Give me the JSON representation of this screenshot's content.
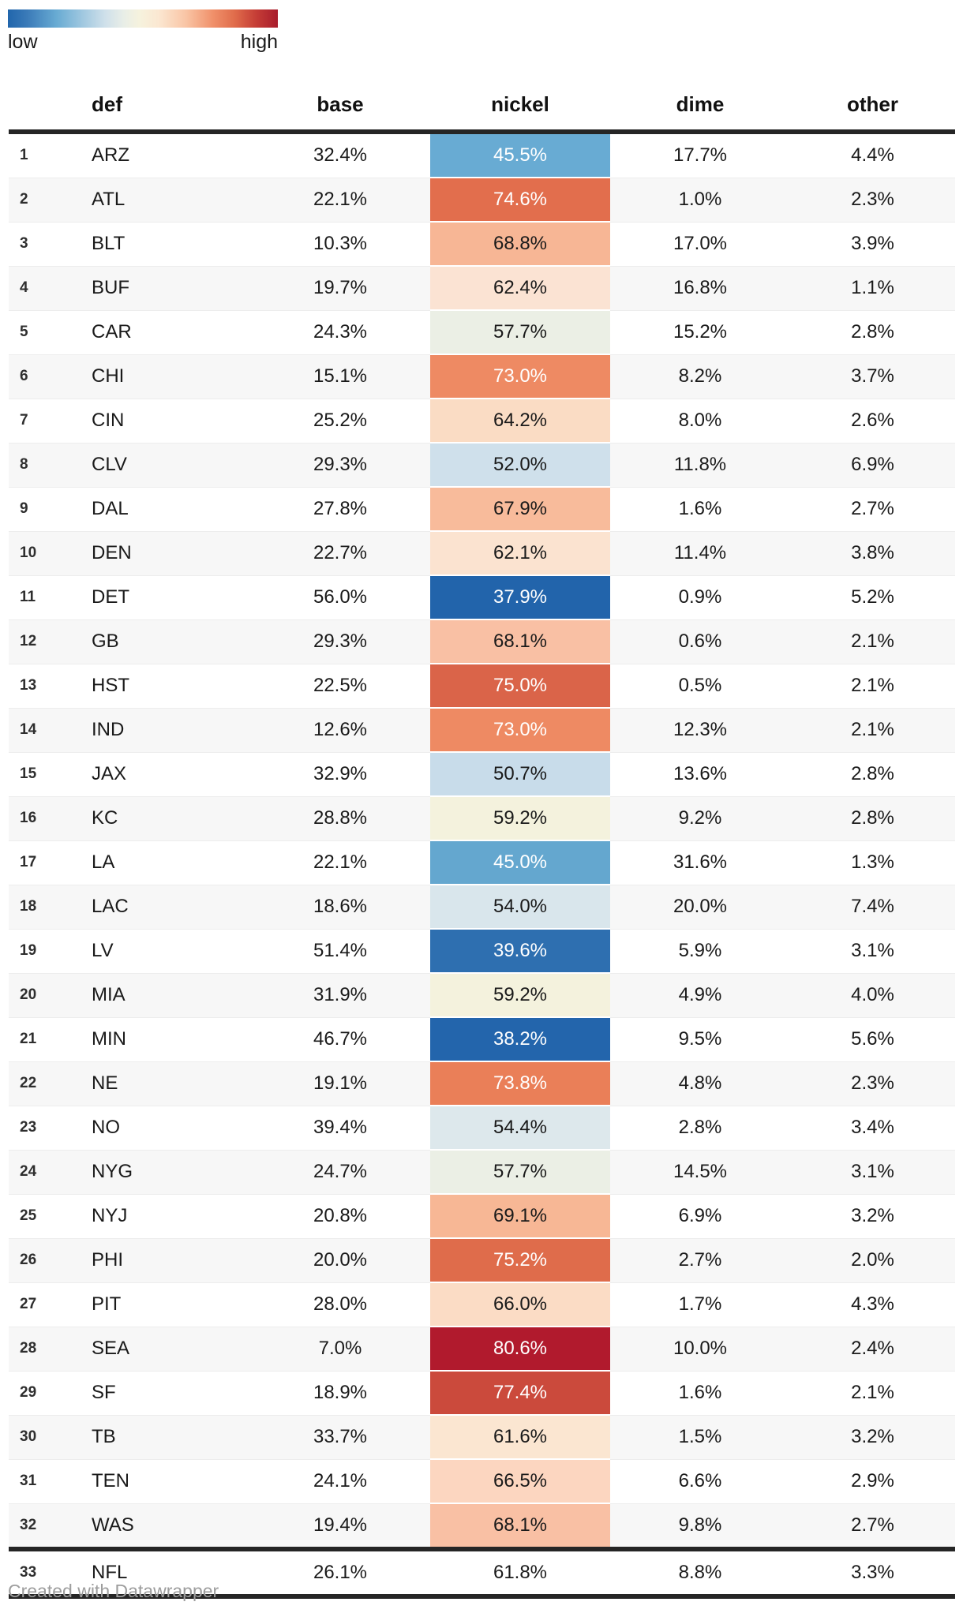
{
  "legend": {
    "low_label": "low",
    "high_label": "high",
    "gradient_stops": [
      {
        "c": "#2166ac",
        "p": 0
      },
      {
        "c": "#3a7ab8",
        "p": 7
      },
      {
        "c": "#68abd3",
        "p": 18
      },
      {
        "c": "#9cc6df",
        "p": 27
      },
      {
        "c": "#cfe0ea",
        "p": 36
      },
      {
        "c": "#e9eee7",
        "p": 43
      },
      {
        "c": "#f6f2dd",
        "p": 49
      },
      {
        "c": "#fbe7d1",
        "p": 56
      },
      {
        "c": "#f9c5a5",
        "p": 66
      },
      {
        "c": "#f0906a",
        "p": 76
      },
      {
        "c": "#e06c4b",
        "p": 84
      },
      {
        "c": "#c53d36",
        "p": 92
      },
      {
        "c": "#a81c2c",
        "p": 100
      }
    ]
  },
  "table": {
    "headers": {
      "rank": "",
      "def": "def",
      "base": "base",
      "nickel": "nickel",
      "dime": "dime",
      "other": "other"
    },
    "rows": [
      {
        "rank": "1",
        "team": "ARZ",
        "base": "32.4%",
        "nickel": "45.5%",
        "dime": "17.7%",
        "other": "4.4%",
        "nickel_bg": "#68abd3",
        "nickel_fg": "#ffffff"
      },
      {
        "rank": "2",
        "team": "ATL",
        "base": "22.1%",
        "nickel": "74.6%",
        "dime": "1.0%",
        "other": "2.3%",
        "nickel_bg": "#e26e4d",
        "nickel_fg": "#ffffff"
      },
      {
        "rank": "3",
        "team": "BLT",
        "base": "10.3%",
        "nickel": "68.8%",
        "dime": "17.0%",
        "other": "3.9%",
        "nickel_bg": "#f7b695",
        "nickel_fg": "#1a1a1a"
      },
      {
        "rank": "4",
        "team": "BUF",
        "base": "19.7%",
        "nickel": "62.4%",
        "dime": "16.8%",
        "other": "1.1%",
        "nickel_bg": "#fbe3d3",
        "nickel_fg": "#1a1a1a"
      },
      {
        "rank": "5",
        "team": "CAR",
        "base": "24.3%",
        "nickel": "57.7%",
        "dime": "15.2%",
        "other": "2.8%",
        "nickel_bg": "#ebefe5",
        "nickel_fg": "#1a1a1a"
      },
      {
        "rank": "6",
        "team": "CHI",
        "base": "15.1%",
        "nickel": "73.0%",
        "dime": "8.2%",
        "other": "3.7%",
        "nickel_bg": "#ee8a63",
        "nickel_fg": "#ffffff"
      },
      {
        "rank": "7",
        "team": "CIN",
        "base": "25.2%",
        "nickel": "64.2%",
        "dime": "8.0%",
        "other": "2.6%",
        "nickel_bg": "#fadcc4",
        "nickel_fg": "#1a1a1a"
      },
      {
        "rank": "8",
        "team": "CLV",
        "base": "29.3%",
        "nickel": "52.0%",
        "dime": "11.8%",
        "other": "6.9%",
        "nickel_bg": "#cfe0eb",
        "nickel_fg": "#1a1a1a"
      },
      {
        "rank": "9",
        "team": "DAL",
        "base": "27.8%",
        "nickel": "67.9%",
        "dime": "1.6%",
        "other": "2.7%",
        "nickel_bg": "#f8bb9b",
        "nickel_fg": "#1a1a1a"
      },
      {
        "rank": "10",
        "team": "DEN",
        "base": "22.7%",
        "nickel": "62.1%",
        "dime": "11.4%",
        "other": "3.8%",
        "nickel_bg": "#fbe3d0",
        "nickel_fg": "#1a1a1a"
      },
      {
        "rank": "11",
        "team": "DET",
        "base": "56.0%",
        "nickel": "37.9%",
        "dime": "0.9%",
        "other": "5.2%",
        "nickel_bg": "#2264ab",
        "nickel_fg": "#ffffff"
      },
      {
        "rank": "12",
        "team": "GB",
        "base": "29.3%",
        "nickel": "68.1%",
        "dime": "0.6%",
        "other": "2.1%",
        "nickel_bg": "#f9c0a4",
        "nickel_fg": "#1a1a1a"
      },
      {
        "rank": "13",
        "team": "HST",
        "base": "22.5%",
        "nickel": "75.0%",
        "dime": "0.5%",
        "other": "2.1%",
        "nickel_bg": "#da6449",
        "nickel_fg": "#ffffff"
      },
      {
        "rank": "14",
        "team": "IND",
        "base": "12.6%",
        "nickel": "73.0%",
        "dime": "12.3%",
        "other": "2.1%",
        "nickel_bg": "#ee8a63",
        "nickel_fg": "#ffffff"
      },
      {
        "rank": "15",
        "team": "JAX",
        "base": "32.9%",
        "nickel": "50.7%",
        "dime": "13.6%",
        "other": "2.8%",
        "nickel_bg": "#c8dcea",
        "nickel_fg": "#1a1a1a"
      },
      {
        "rank": "16",
        "team": "KC",
        "base": "28.8%",
        "nickel": "59.2%",
        "dime": "9.2%",
        "other": "2.8%",
        "nickel_bg": "#f4f2dd",
        "nickel_fg": "#1a1a1a"
      },
      {
        "rank": "17",
        "team": "LA",
        "base": "22.1%",
        "nickel": "45.0%",
        "dime": "31.6%",
        "other": "1.3%",
        "nickel_bg": "#64a7cf",
        "nickel_fg": "#ffffff"
      },
      {
        "rank": "18",
        "team": "LAC",
        "base": "18.6%",
        "nickel": "54.0%",
        "dime": "20.0%",
        "other": "7.4%",
        "nickel_bg": "#d9e6ec",
        "nickel_fg": "#1a1a1a"
      },
      {
        "rank": "19",
        "team": "LV",
        "base": "51.4%",
        "nickel": "39.6%",
        "dime": "5.9%",
        "other": "3.1%",
        "nickel_bg": "#2e6fb0",
        "nickel_fg": "#ffffff"
      },
      {
        "rank": "20",
        "team": "MIA",
        "base": "31.9%",
        "nickel": "59.2%",
        "dime": "4.9%",
        "other": "4.0%",
        "nickel_bg": "#f4f2dd",
        "nickel_fg": "#1a1a1a"
      },
      {
        "rank": "21",
        "team": "MIN",
        "base": "46.7%",
        "nickel": "38.2%",
        "dime": "9.5%",
        "other": "5.6%",
        "nickel_bg": "#2365ac",
        "nickel_fg": "#ffffff"
      },
      {
        "rank": "22",
        "team": "NE",
        "base": "19.1%",
        "nickel": "73.8%",
        "dime": "4.8%",
        "other": "2.3%",
        "nickel_bg": "#ea7f58",
        "nickel_fg": "#ffffff"
      },
      {
        "rank": "23",
        "team": "NO",
        "base": "39.4%",
        "nickel": "54.4%",
        "dime": "2.8%",
        "other": "3.4%",
        "nickel_bg": "#dde8ec",
        "nickel_fg": "#1a1a1a"
      },
      {
        "rank": "24",
        "team": "NYG",
        "base": "24.7%",
        "nickel": "57.7%",
        "dime": "14.5%",
        "other": "3.1%",
        "nickel_bg": "#ebefe5",
        "nickel_fg": "#1a1a1a"
      },
      {
        "rank": "25",
        "team": "NYJ",
        "base": "20.8%",
        "nickel": "69.1%",
        "dime": "6.9%",
        "other": "3.2%",
        "nickel_bg": "#f7b795",
        "nickel_fg": "#1a1a1a"
      },
      {
        "rank": "26",
        "team": "PHI",
        "base": "20.0%",
        "nickel": "75.2%",
        "dime": "2.7%",
        "other": "2.0%",
        "nickel_bg": "#df6c4b",
        "nickel_fg": "#ffffff"
      },
      {
        "rank": "27",
        "team": "PIT",
        "base": "28.0%",
        "nickel": "66.0%",
        "dime": "1.7%",
        "other": "4.3%",
        "nickel_bg": "#fbdcc5",
        "nickel_fg": "#1a1a1a"
      },
      {
        "rank": "28",
        "team": "SEA",
        "base": "7.0%",
        "nickel": "80.6%",
        "dime": "10.0%",
        "other": "2.4%",
        "nickel_bg": "#b11a2d",
        "nickel_fg": "#ffffff"
      },
      {
        "rank": "29",
        "team": "SF",
        "base": "18.9%",
        "nickel": "77.4%",
        "dime": "1.6%",
        "other": "2.1%",
        "nickel_bg": "#cb4a3c",
        "nickel_fg": "#ffffff"
      },
      {
        "rank": "30",
        "team": "TB",
        "base": "33.7%",
        "nickel": "61.6%",
        "dime": "1.5%",
        "other": "3.2%",
        "nickel_bg": "#fbe6d1",
        "nickel_fg": "#1a1a1a"
      },
      {
        "rank": "31",
        "team": "TEN",
        "base": "24.1%",
        "nickel": "66.5%",
        "dime": "6.6%",
        "other": "2.9%",
        "nickel_bg": "#fcd6c0",
        "nickel_fg": "#1a1a1a"
      },
      {
        "rank": "32",
        "team": "WAS",
        "base": "19.4%",
        "nickel": "68.1%",
        "dime": "9.8%",
        "other": "2.7%",
        "nickel_bg": "#f9c0a4",
        "nickel_fg": "#1a1a1a"
      },
      {
        "rank": "33",
        "team": "NFL",
        "base": "26.1%",
        "nickel": "61.8%",
        "dime": "8.8%",
        "other": "3.3%",
        "nickel_bg": "#f9e7d4",
        "nickel_fg": "#1a1a1a",
        "summary": true
      }
    ]
  },
  "footer": {
    "credit": "Created with Datawrapper"
  },
  "colors": {
    "rule_dark": "#252525",
    "row_stripe": "#f7f7f7",
    "row_separator": "#ededed",
    "footer_text": "#9d9d9d",
    "heatmap_low": "#2166ac",
    "heatmap_mid": "#f8f1dc",
    "heatmap_high": "#a81c2c"
  },
  "chart_data": {
    "type": "table",
    "columns": [
      "def",
      "base",
      "nickel",
      "dime",
      "other"
    ],
    "heatmap_column": "nickel",
    "legend": {
      "low_label": "low",
      "high_label": "high",
      "palette": "blue-cream-red diverging"
    },
    "rows": [
      [
        "ARZ",
        32.4,
        45.5,
        17.7,
        4.4
      ],
      [
        "ATL",
        22.1,
        74.6,
        1.0,
        2.3
      ],
      [
        "BLT",
        10.3,
        68.8,
        17.0,
        3.9
      ],
      [
        "BUF",
        19.7,
        62.4,
        16.8,
        1.1
      ],
      [
        "CAR",
        24.3,
        57.7,
        15.2,
        2.8
      ],
      [
        "CHI",
        15.1,
        73.0,
        8.2,
        3.7
      ],
      [
        "CIN",
        25.2,
        64.2,
        8.0,
        2.6
      ],
      [
        "CLV",
        29.3,
        52.0,
        11.8,
        6.9
      ],
      [
        "DAL",
        27.8,
        67.9,
        1.6,
        2.7
      ],
      [
        "DEN",
        22.7,
        62.1,
        11.4,
        3.8
      ],
      [
        "DET",
        56.0,
        37.9,
        0.9,
        5.2
      ],
      [
        "GB",
        29.3,
        68.1,
        0.6,
        2.1
      ],
      [
        "HST",
        22.5,
        75.0,
        0.5,
        2.1
      ],
      [
        "IND",
        12.6,
        73.0,
        12.3,
        2.1
      ],
      [
        "JAX",
        32.9,
        50.7,
        13.6,
        2.8
      ],
      [
        "KC",
        28.8,
        59.2,
        9.2,
        2.8
      ],
      [
        "LA",
        22.1,
        45.0,
        31.6,
        1.3
      ],
      [
        "LAC",
        18.6,
        54.0,
        20.0,
        7.4
      ],
      [
        "LV",
        51.4,
        39.6,
        5.9,
        3.1
      ],
      [
        "MIA",
        31.9,
        59.2,
        4.9,
        4.0
      ],
      [
        "MIN",
        46.7,
        38.2,
        9.5,
        5.6
      ],
      [
        "NE",
        19.1,
        73.8,
        4.8,
        2.3
      ],
      [
        "NO",
        39.4,
        54.4,
        2.8,
        3.4
      ],
      [
        "NYG",
        24.7,
        57.7,
        14.5,
        3.1
      ],
      [
        "NYJ",
        20.8,
        69.1,
        6.9,
        3.2
      ],
      [
        "PHI",
        20.0,
        75.2,
        2.7,
        2.0
      ],
      [
        "PIT",
        28.0,
        66.0,
        1.7,
        4.3
      ],
      [
        "SEA",
        7.0,
        80.6,
        10.0,
        2.4
      ],
      [
        "SF",
        18.9,
        77.4,
        1.6,
        2.1
      ],
      [
        "TB",
        33.7,
        61.6,
        1.5,
        3.2
      ],
      [
        "TEN",
        24.1,
        66.5,
        6.6,
        2.9
      ],
      [
        "WAS",
        19.4,
        68.1,
        9.8,
        2.7
      ],
      [
        "NFL",
        26.1,
        61.8,
        8.8,
        3.3
      ]
    ]
  }
}
